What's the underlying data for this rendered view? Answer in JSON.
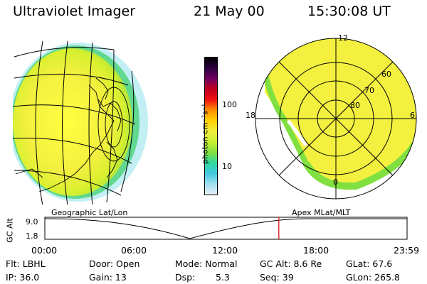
{
  "header": {
    "instrument": "Ultraviolet Imager",
    "date": "21 May 00",
    "time": "15:30:08 UT"
  },
  "colorbar": {
    "unit_label": "photon cm⁻²s⁻¹",
    "ticks": [
      "100",
      "10"
    ],
    "colors": [
      "#000000",
      "#2a0040",
      "#700060",
      "#c00020",
      "#f01010",
      "#ff9000",
      "#ffd000",
      "#f0f040",
      "#c8f030",
      "#80e040",
      "#30d8a0",
      "#40c8e0",
      "#a0e0f0",
      "#e8f0f8"
    ]
  },
  "left_image": {
    "label": "Geographic Lat/Lon"
  },
  "right_image": {
    "label": "Apex MLat/MLT",
    "mlt_labels": [
      "12",
      "18",
      "6",
      "0"
    ],
    "lat_labels": [
      "60",
      "70",
      "80"
    ]
  },
  "timeline": {
    "y_axis_label": "GC Alt",
    "y_ticks": [
      "9.0",
      "1.8"
    ],
    "x_ticks": [
      "00:00",
      "06:00",
      "12:00",
      "18:00",
      "23:59"
    ],
    "current_time_fraction": 0.646,
    "orbit_min_fraction": 0.4
  },
  "footer": {
    "row1": [
      "Flt: LBHL",
      "Door: Open",
      "Mode: Normal",
      "GC Alt: 8.6 Re",
      "GLat: 67.6"
    ],
    "row2": [
      "IP: 36.0",
      "Gain: 13",
      "Dsp:",
      "5.3",
      "Seq: 39",
      "GLon: 265.8"
    ]
  }
}
